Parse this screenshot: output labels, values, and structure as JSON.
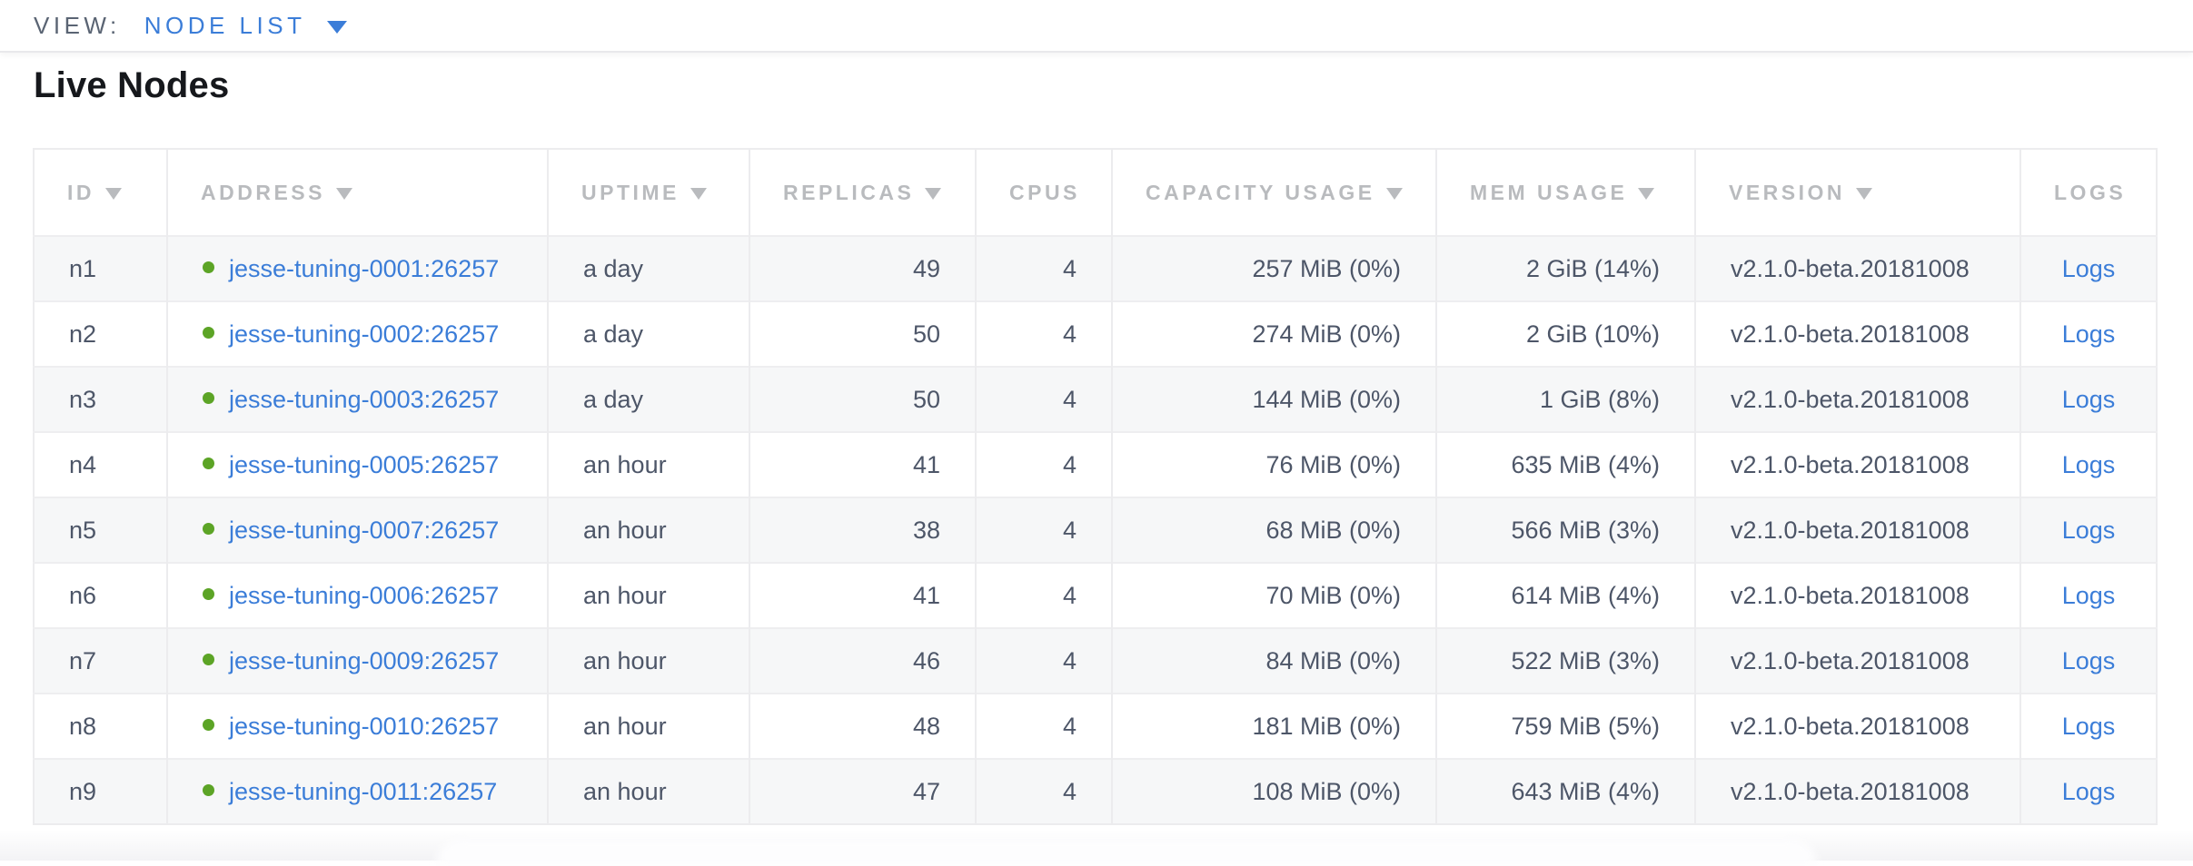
{
  "view_bar": {
    "label": "VIEW:",
    "selected_view": "NODE LIST"
  },
  "section": {
    "title": "Live Nodes"
  },
  "colors": {
    "link_blue": "#3b7dd8",
    "healthy_green": "#5ca426",
    "header_gray": "#b9bbbe",
    "cell_slate": "#4d5668",
    "muted_slate": "#5a6473",
    "stripe": "#f6f7f8",
    "grid_line": "#ececee"
  },
  "table": {
    "columns": [
      {
        "key": "id",
        "label": "ID",
        "sortable": true,
        "header_align": "left"
      },
      {
        "key": "address",
        "label": "ADDRESS",
        "sortable": true,
        "header_align": "left"
      },
      {
        "key": "uptime",
        "label": "UPTIME",
        "sortable": true,
        "header_align": "left"
      },
      {
        "key": "replicas",
        "label": "REPLICAS",
        "sortable": true,
        "header_align": "left"
      },
      {
        "key": "cpus",
        "label": "CPUS",
        "sortable": false,
        "header_align": "left"
      },
      {
        "key": "capacity_usage",
        "label": "CAPACITY USAGE",
        "sortable": true,
        "header_align": "left"
      },
      {
        "key": "mem_usage",
        "label": "MEM USAGE",
        "sortable": true,
        "header_align": "left"
      },
      {
        "key": "version",
        "label": "VERSION",
        "sortable": true,
        "header_align": "left"
      },
      {
        "key": "logs",
        "label": "LOGS",
        "sortable": false,
        "header_align": "center"
      }
    ],
    "rows": [
      {
        "id": "n1",
        "status": "live",
        "address": "jesse-tuning-0001:26257",
        "uptime": "a day",
        "replicas": "49",
        "cpus": "4",
        "capacity_usage": "257 MiB (0%)",
        "mem_usage": "2 GiB (14%)",
        "version": "v2.1.0-beta.20181008",
        "logs_label": "Logs"
      },
      {
        "id": "n2",
        "status": "live",
        "address": "jesse-tuning-0002:26257",
        "uptime": "a day",
        "replicas": "50",
        "cpus": "4",
        "capacity_usage": "274 MiB (0%)",
        "mem_usage": "2 GiB (10%)",
        "version": "v2.1.0-beta.20181008",
        "logs_label": "Logs"
      },
      {
        "id": "n3",
        "status": "live",
        "address": "jesse-tuning-0003:26257",
        "uptime": "a day",
        "replicas": "50",
        "cpus": "4",
        "capacity_usage": "144 MiB (0%)",
        "mem_usage": "1 GiB (8%)",
        "version": "v2.1.0-beta.20181008",
        "logs_label": "Logs"
      },
      {
        "id": "n4",
        "status": "live",
        "address": "jesse-tuning-0005:26257",
        "uptime": "an hour",
        "replicas": "41",
        "cpus": "4",
        "capacity_usage": "76 MiB (0%)",
        "mem_usage": "635 MiB (4%)",
        "version": "v2.1.0-beta.20181008",
        "logs_label": "Logs"
      },
      {
        "id": "n5",
        "status": "live",
        "address": "jesse-tuning-0007:26257",
        "uptime": "an hour",
        "replicas": "38",
        "cpus": "4",
        "capacity_usage": "68 MiB (0%)",
        "mem_usage": "566 MiB (3%)",
        "version": "v2.1.0-beta.20181008",
        "logs_label": "Logs"
      },
      {
        "id": "n6",
        "status": "live",
        "address": "jesse-tuning-0006:26257",
        "uptime": "an hour",
        "replicas": "41",
        "cpus": "4",
        "capacity_usage": "70 MiB (0%)",
        "mem_usage": "614 MiB (4%)",
        "version": "v2.1.0-beta.20181008",
        "logs_label": "Logs"
      },
      {
        "id": "n7",
        "status": "live",
        "address": "jesse-tuning-0009:26257",
        "uptime": "an hour",
        "replicas": "46",
        "cpus": "4",
        "capacity_usage": "84 MiB (0%)",
        "mem_usage": "522 MiB (3%)",
        "version": "v2.1.0-beta.20181008",
        "logs_label": "Logs"
      },
      {
        "id": "n8",
        "status": "live",
        "address": "jesse-tuning-0010:26257",
        "uptime": "an hour",
        "replicas": "48",
        "cpus": "4",
        "capacity_usage": "181 MiB (0%)",
        "mem_usage": "759 MiB (5%)",
        "version": "v2.1.0-beta.20181008",
        "logs_label": "Logs"
      },
      {
        "id": "n9",
        "status": "live",
        "address": "jesse-tuning-0011:26257",
        "uptime": "an hour",
        "replicas": "47",
        "cpus": "4",
        "capacity_usage": "108 MiB (0%)",
        "mem_usage": "643 MiB (4%)",
        "version": "v2.1.0-beta.20181008",
        "logs_label": "Logs"
      }
    ]
  }
}
